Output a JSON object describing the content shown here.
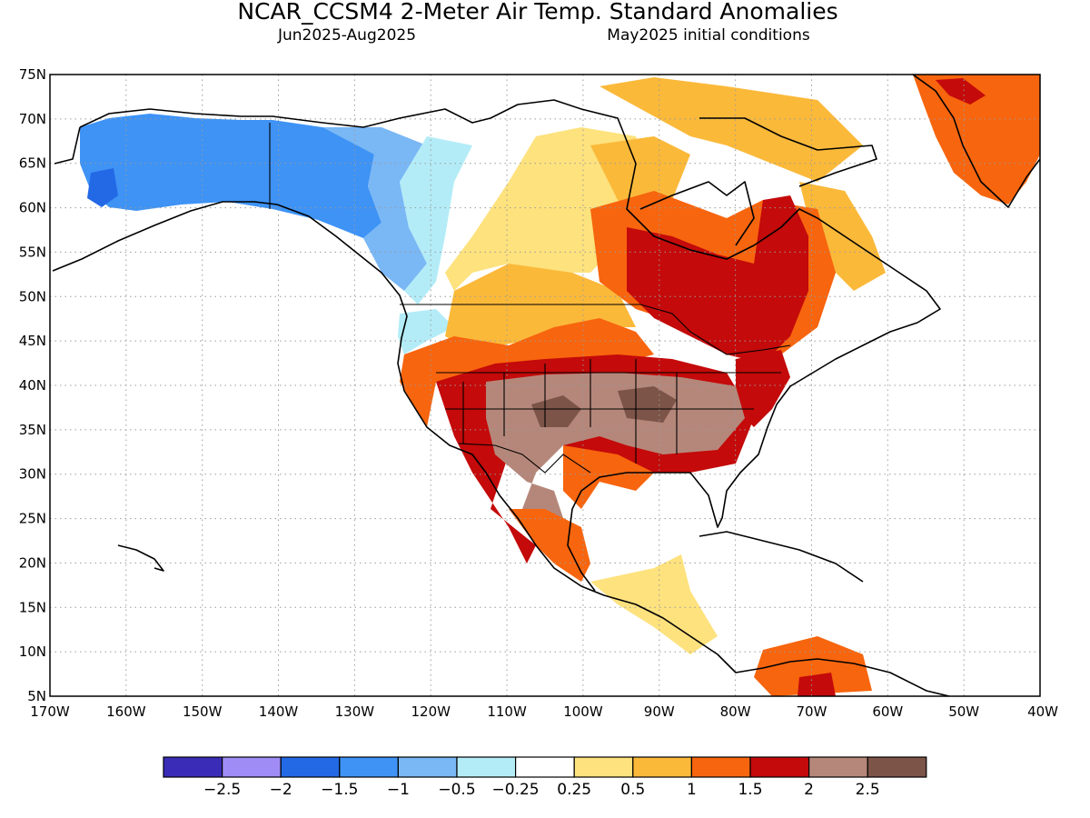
{
  "title": "NCAR_CCSM4 2-Meter Air Temp. Standard Anomalies",
  "subtitle_left": "Jun2025-Aug2025",
  "subtitle_right": "May2025 initial conditions",
  "map": {
    "lat_labels": [
      "75N",
      "70N",
      "65N",
      "60N",
      "55N",
      "50N",
      "45N",
      "40N",
      "35N",
      "30N",
      "25N",
      "20N",
      "15N",
      "10N",
      "5N"
    ],
    "lon_labels": [
      "170W",
      "160W",
      "150W",
      "140W",
      "130W",
      "120W",
      "110W",
      "100W",
      "90W",
      "80W",
      "70W",
      "60W",
      "50W",
      "40W"
    ],
    "lat_range": [
      5,
      75
    ],
    "lon_range": [
      -170,
      -40
    ],
    "grid": "dotted",
    "anomaly_regions": [
      {
        "region": "Alaska / NW Canada",
        "category": "-1.5 to -1"
      },
      {
        "region": "Western Canada",
        "category": "-0.5 to -0.25"
      },
      {
        "region": "Southern Plains / Texas",
        "category": "> 2.5"
      },
      {
        "region": "Great Lakes / Quebec",
        "category": "1.5 to 2"
      },
      {
        "region": "Greenland",
        "category": "1 to 1.5"
      },
      {
        "region": "Central America",
        "category": "0.25 to 0.5"
      }
    ]
  },
  "colorbar": {
    "colors": [
      "#3b2cb8",
      "#9f8cf5",
      "#2369e6",
      "#3e93f5",
      "#7ab7f5",
      "#b3ecf7",
      "#ffffff",
      "#fde27e",
      "#fbb93a",
      "#f7650e",
      "#c40a0a",
      "#b5877a",
      "#7c5448"
    ],
    "labels": [
      "-2.5",
      "-2",
      "-1.5",
      "-1",
      "-0.5",
      "-0.25",
      "0.25",
      "0.5",
      "1",
      "1.5",
      "2",
      "2.5"
    ]
  }
}
